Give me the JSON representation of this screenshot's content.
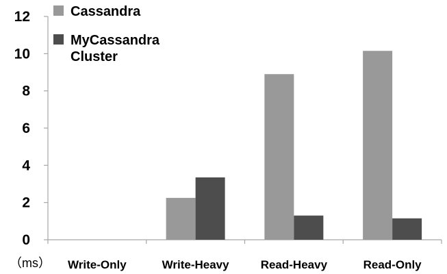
{
  "chart_data": {
    "type": "bar",
    "categories": [
      "Write-Only",
      "Write-Heavy",
      "Read-Heavy",
      "Read-Only"
    ],
    "series": [
      {
        "name": "Cassandra",
        "values": [
          0,
          2.25,
          8.9,
          10.15
        ],
        "color": "#999999"
      },
      {
        "name": "MyCassandra\nCluster",
        "values": [
          0,
          3.35,
          1.3,
          1.15
        ],
        "color": "#4d4d4d"
      }
    ],
    "ylim": [
      0,
      12
    ],
    "yticks": [
      0,
      2,
      4,
      6,
      8,
      10,
      12
    ],
    "unit_label": "（ms）",
    "grid": false,
    "legend": "top-left"
  }
}
